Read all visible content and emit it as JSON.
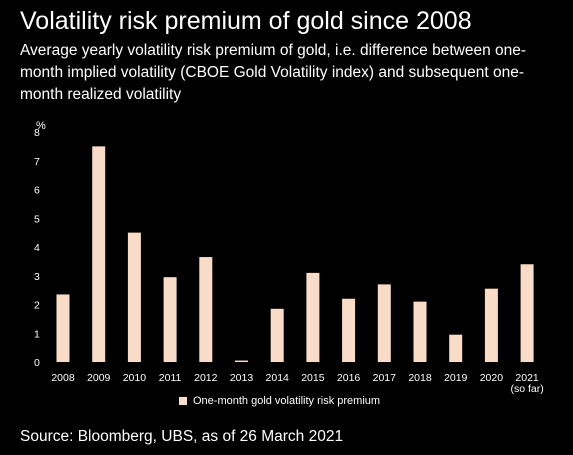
{
  "header": {
    "title": "Volatility risk premium of gold since 2008",
    "subtitle": "Average yearly volatility risk premium of gold, i.e. difference between one-month implied volatility (CBOE Gold Volatility index) and subsequent one-month realized volatility"
  },
  "chart_data": {
    "type": "bar",
    "categories": [
      "2008",
      "2009",
      "2010",
      "2011",
      "2012",
      "2013",
      "2014",
      "2015",
      "2016",
      "2017",
      "2018",
      "2019",
      "2020",
      "2021"
    ],
    "category_sublabels": [
      "",
      "",
      "",
      "",
      "",
      "",
      "",
      "",
      "",
      "",
      "",
      "",
      "",
      "(so far)"
    ],
    "series": [
      {
        "name": "One-month gold volatility risk premium",
        "values": [
          2.35,
          7.5,
          4.5,
          2.95,
          3.65,
          0.05,
          1.85,
          3.1,
          2.2,
          2.7,
          2.1,
          0.95,
          2.55,
          3.4
        ]
      }
    ],
    "yunit": "%",
    "ylim": [
      0,
      8
    ],
    "yticks": [
      "0",
      "1",
      "2",
      "3",
      "4",
      "5",
      "6",
      "7",
      "8"
    ],
    "grid": false,
    "legend_position": "bottom",
    "bar_color": "#f8dcc8"
  },
  "footer": {
    "source": "Source: Bloomberg, UBS, as of 26 March 2021"
  }
}
